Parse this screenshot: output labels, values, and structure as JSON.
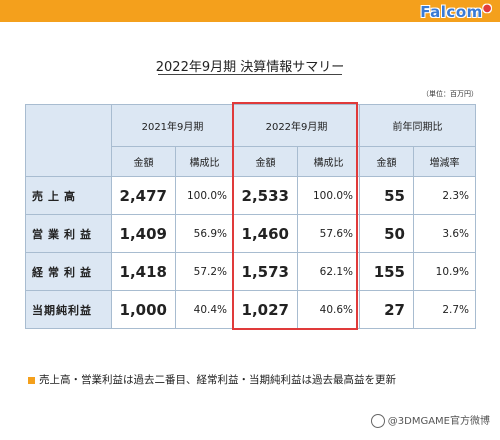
{
  "brand": {
    "logo_text": "Falcom"
  },
  "title": "2022年9月期 決算情報サマリー",
  "unit_note": "（単位：百万円）",
  "table": {
    "periods": [
      "2021年9月期",
      "2022年9月期",
      "前年同期比"
    ],
    "subheaders": [
      "金額",
      "構成比",
      "金額",
      "構成比",
      "金額",
      "増減率"
    ],
    "rows": [
      {
        "label": "売上高",
        "values": [
          "2,477",
          "100.0%",
          "2,533",
          "100.0%",
          "55",
          "2.3%"
        ]
      },
      {
        "label": "営業利益",
        "values": [
          "1,409",
          "56.9%",
          "1,460",
          "57.6%",
          "50",
          "3.6%"
        ]
      },
      {
        "label": "経常利益",
        "values": [
          "1,418",
          "57.2%",
          "1,573",
          "62.1%",
          "155",
          "10.9%"
        ]
      },
      {
        "label": "当期純利益",
        "values": [
          "1,000",
          "40.4%",
          "1,027",
          "40.6%",
          "27",
          "2.7%"
        ]
      }
    ]
  },
  "note": "売上高・営業利益は過去二番目、経常利益・当期純利益は過去最高益を更新",
  "watermark": "@3DMGAME官方微博",
  "colors": {
    "accent": "#f4a01c",
    "header_bg": "#dce7f3",
    "highlight": "#e03a3a"
  }
}
